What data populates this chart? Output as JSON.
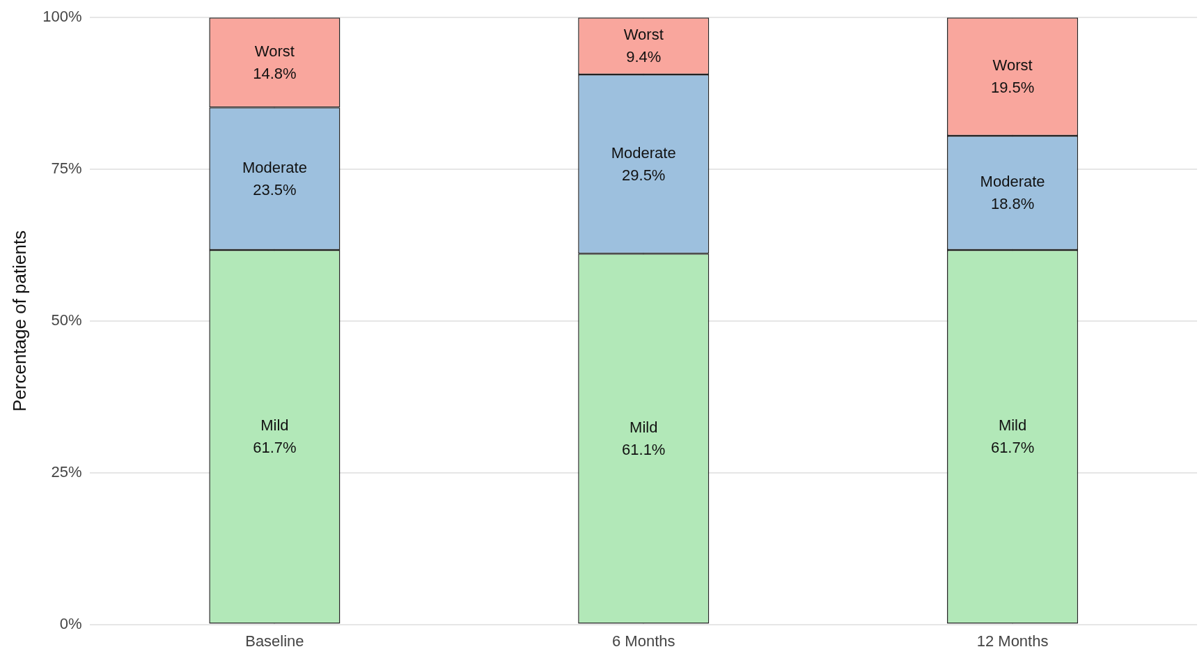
{
  "chart_data": {
    "type": "bar",
    "stacked": true,
    "ylabel": "Percentage of patients",
    "categories": [
      "Baseline",
      "6 Months",
      "12 Months"
    ],
    "series": [
      {
        "name": "Mild",
        "color": "#b2e8b8",
        "values": [
          61.7,
          61.1,
          61.7
        ],
        "value_labels": [
          "61.7%",
          "61.1%",
          "61.7%"
        ]
      },
      {
        "name": "Moderate",
        "color": "#9dc0de",
        "values": [
          23.5,
          29.5,
          18.8
        ],
        "value_labels": [
          "23.5%",
          "29.5%",
          "18.8%"
        ]
      },
      {
        "name": "Worst",
        "color": "#f9a69d",
        "values": [
          14.8,
          9.4,
          19.5
        ],
        "value_labels": [
          "14.8%",
          "9.4%",
          "19.5%"
        ]
      }
    ],
    "ylim": [
      0,
      100
    ],
    "yticks": [
      {
        "value": 0,
        "label": "0%"
      },
      {
        "value": 25,
        "label": "25%"
      },
      {
        "value": 50,
        "label": "50%"
      },
      {
        "value": 75,
        "label": "75%"
      },
      {
        "value": 100,
        "label": "100%"
      }
    ],
    "grid": true,
    "legend": false
  }
}
